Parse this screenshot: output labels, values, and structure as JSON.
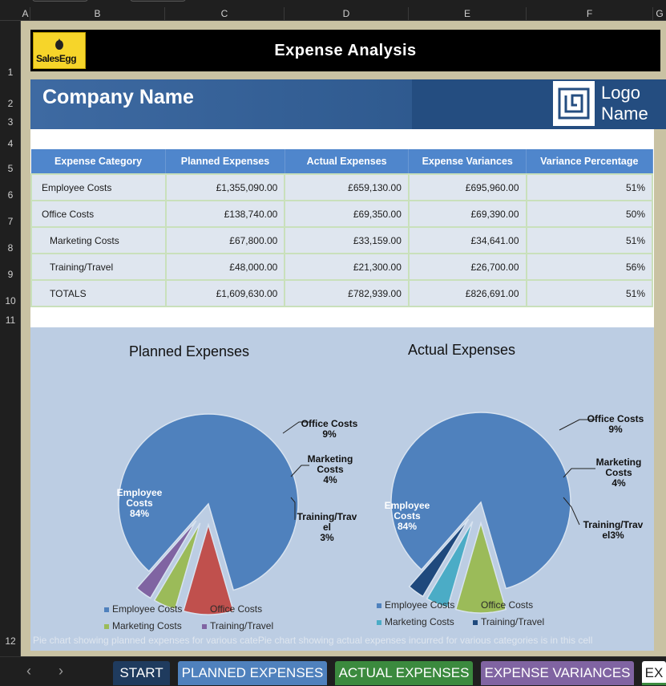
{
  "column_headers": [
    "A",
    "B",
    "C",
    "D",
    "E",
    "F",
    "G"
  ],
  "row_headers": [
    "1",
    "2",
    "3",
    "4",
    "5",
    "6",
    "7",
    "8",
    "9",
    "10",
    "11",
    "12"
  ],
  "title_bar": {
    "logo_text": "SalesEgg",
    "title": "Expense Analysis"
  },
  "company": {
    "name": "Company Name",
    "logo_line1": "Logo",
    "logo_line2": "Name"
  },
  "table": {
    "headers": [
      "Expense Category",
      "Planned Expenses",
      "Actual Expenses",
      "Expense Variances",
      "Variance Percentage"
    ],
    "rows": [
      [
        "Employee Costs",
        "£1,355,090.00",
        "£659,130.00",
        "£695,960.00",
        "51%"
      ],
      [
        "Office Costs",
        "£138,740.00",
        "£69,350.00",
        "£69,390.00",
        "50%"
      ],
      [
        "Marketing Costs",
        "£67,800.00",
        "£33,159.00",
        "£34,641.00",
        "51%"
      ],
      [
        "Training/Travel",
        "£48,000.00",
        "£21,300.00",
        "£26,700.00",
        "56%"
      ],
      [
        "TOTALS",
        "£1,609,630.00",
        "£782,939.00",
        "£826,691.00",
        "51%"
      ]
    ]
  },
  "chart_data": [
    {
      "type": "pie",
      "title": "Planned Expenses",
      "categories": [
        "Employee Costs",
        "Office Costs",
        "Marketing Costs",
        "Training/Travel"
      ],
      "values": [
        84,
        9,
        4,
        3
      ],
      "slice_labels": [
        [
          "Employee",
          "Costs",
          "84%"
        ],
        [
          "Office Costs",
          "9%"
        ],
        [
          "Marketing",
          "Costs",
          "4%"
        ],
        [
          "Training/Trav",
          "el",
          "3%"
        ]
      ],
      "colors": [
        "#4f81bd",
        "#c0504d",
        "#9bbb59",
        "#8064a2"
      ],
      "legend": [
        "Employee Costs",
        "Office Costs",
        "Marketing Costs",
        "Training/Travel"
      ],
      "legend_position": "bottom"
    },
    {
      "type": "pie",
      "title": "Actual Expenses",
      "categories": [
        "Employee Costs",
        "Office Costs",
        "Marketing Costs",
        "Training/Travel"
      ],
      "values": [
        84,
        9,
        4,
        3
      ],
      "slice_labels": [
        [
          "Employee",
          "Costs",
          "84%"
        ],
        [
          "Office Costs",
          "9%"
        ],
        [
          "Marketing",
          "Costs",
          "4%"
        ],
        [
          "Training/Trav",
          "el3%"
        ]
      ],
      "colors": [
        "#4f81bd",
        "#9bbb59",
        "#4bacc6",
        "#1f497d"
      ],
      "legend": [
        "Employee Costs",
        "Office Costs",
        "Marketing Costs",
        "Training/Travel"
      ],
      "legend_position": "bottom"
    }
  ],
  "chart_note": "Pie chart showing planned expenses for various catePie chart showing actual expenses incurred for various categories is in this cell",
  "tabs": [
    "START",
    "PLANNED EXPENSES",
    "ACTUAL EXPENSES",
    "EXPENSE VARIANCES",
    "EX"
  ],
  "tab_colors": [
    "#1f3b5e",
    "#4f81bd",
    "#3b8a3e",
    "#8064a2",
    "#ffffff"
  ],
  "nav": {
    "prev": "‹",
    "next": "›"
  }
}
